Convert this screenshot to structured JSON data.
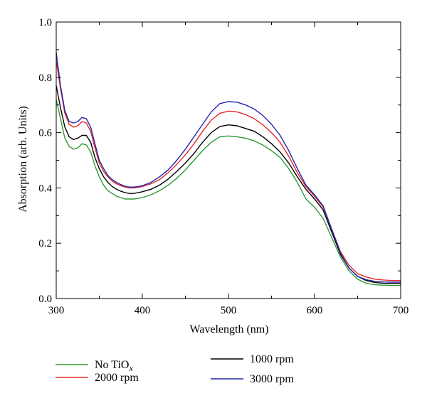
{
  "chart_data": {
    "type": "line",
    "xlabel": "Wavelength (nm)",
    "ylabel": "Absorption (arb. Units)",
    "xlim": [
      300,
      700
    ],
    "ylim": [
      0.0,
      1.0
    ],
    "xticks": [
      "300",
      "400",
      "500",
      "600",
      "700"
    ],
    "yticks": [
      "0.0",
      "0.2",
      "0.4",
      "0.6",
      "0.8",
      "1.0"
    ],
    "grid": false,
    "legend_position": "bottom",
    "series": [
      {
        "name": "No TiO",
        "name_subscript": "x",
        "color": "#2e9a35",
        "points": [
          [
            300,
            0.72
          ],
          [
            305,
            0.65
          ],
          [
            310,
            0.58
          ],
          [
            315,
            0.55
          ],
          [
            320,
            0.54
          ],
          [
            325,
            0.545
          ],
          [
            330,
            0.56
          ],
          [
            335,
            0.555
          ],
          [
            340,
            0.53
          ],
          [
            345,
            0.48
          ],
          [
            350,
            0.44
          ],
          [
            355,
            0.41
          ],
          [
            360,
            0.39
          ],
          [
            365,
            0.38
          ],
          [
            370,
            0.37
          ],
          [
            375,
            0.365
          ],
          [
            380,
            0.36
          ],
          [
            385,
            0.36
          ],
          [
            390,
            0.36
          ],
          [
            395,
            0.362
          ],
          [
            400,
            0.365
          ],
          [
            410,
            0.375
          ],
          [
            420,
            0.39
          ],
          [
            430,
            0.41
          ],
          [
            440,
            0.435
          ],
          [
            450,
            0.465
          ],
          [
            460,
            0.5
          ],
          [
            470,
            0.535
          ],
          [
            480,
            0.565
          ],
          [
            490,
            0.585
          ],
          [
            500,
            0.588
          ],
          [
            510,
            0.585
          ],
          [
            520,
            0.58
          ],
          [
            530,
            0.57
          ],
          [
            540,
            0.555
          ],
          [
            550,
            0.535
          ],
          [
            560,
            0.51
          ],
          [
            570,
            0.47
          ],
          [
            580,
            0.42
          ],
          [
            590,
            0.36
          ],
          [
            600,
            0.33
          ],
          [
            610,
            0.29
          ],
          [
            620,
            0.22
          ],
          [
            630,
            0.15
          ],
          [
            640,
            0.1
          ],
          [
            650,
            0.07
          ],
          [
            660,
            0.055
          ],
          [
            670,
            0.05
          ],
          [
            680,
            0.048
          ],
          [
            690,
            0.047
          ],
          [
            700,
            0.047
          ]
        ]
      },
      {
        "name": "1000 rpm",
        "color": "#000000",
        "points": [
          [
            300,
            0.77
          ],
          [
            305,
            0.69
          ],
          [
            310,
            0.62
          ],
          [
            315,
            0.585
          ],
          [
            320,
            0.575
          ],
          [
            325,
            0.58
          ],
          [
            330,
            0.59
          ],
          [
            335,
            0.59
          ],
          [
            340,
            0.565
          ],
          [
            345,
            0.51
          ],
          [
            350,
            0.47
          ],
          [
            355,
            0.44
          ],
          [
            360,
            0.42
          ],
          [
            365,
            0.405
          ],
          [
            370,
            0.395
          ],
          [
            375,
            0.388
          ],
          [
            380,
            0.383
          ],
          [
            385,
            0.38
          ],
          [
            390,
            0.38
          ],
          [
            395,
            0.383
          ],
          [
            400,
            0.386
          ],
          [
            410,
            0.395
          ],
          [
            420,
            0.41
          ],
          [
            430,
            0.432
          ],
          [
            440,
            0.46
          ],
          [
            450,
            0.49
          ],
          [
            460,
            0.525
          ],
          [
            470,
            0.565
          ],
          [
            480,
            0.6
          ],
          [
            490,
            0.622
          ],
          [
            500,
            0.628
          ],
          [
            510,
            0.625
          ],
          [
            520,
            0.615
          ],
          [
            530,
            0.605
          ],
          [
            540,
            0.585
          ],
          [
            550,
            0.56
          ],
          [
            560,
            0.53
          ],
          [
            570,
            0.49
          ],
          [
            580,
            0.44
          ],
          [
            590,
            0.395
          ],
          [
            600,
            0.36
          ],
          [
            610,
            0.32
          ],
          [
            620,
            0.24
          ],
          [
            630,
            0.16
          ],
          [
            640,
            0.11
          ],
          [
            650,
            0.08
          ],
          [
            660,
            0.065
          ],
          [
            670,
            0.058
          ],
          [
            680,
            0.055
          ],
          [
            690,
            0.054
          ],
          [
            700,
            0.054
          ]
        ]
      },
      {
        "name": "2000 rpm",
        "color": "#e8272a",
        "points": [
          [
            300,
            0.86
          ],
          [
            305,
            0.76
          ],
          [
            310,
            0.67
          ],
          [
            315,
            0.63
          ],
          [
            320,
            0.62
          ],
          [
            325,
            0.625
          ],
          [
            330,
            0.64
          ],
          [
            335,
            0.635
          ],
          [
            340,
            0.605
          ],
          [
            345,
            0.545
          ],
          [
            350,
            0.49
          ],
          [
            355,
            0.46
          ],
          [
            360,
            0.44
          ],
          [
            365,
            0.425
          ],
          [
            370,
            0.415
          ],
          [
            375,
            0.408
          ],
          [
            380,
            0.403
          ],
          [
            385,
            0.4
          ],
          [
            390,
            0.4
          ],
          [
            395,
            0.402
          ],
          [
            400,
            0.405
          ],
          [
            410,
            0.415
          ],
          [
            420,
            0.43
          ],
          [
            430,
            0.455
          ],
          [
            440,
            0.485
          ],
          [
            450,
            0.52
          ],
          [
            460,
            0.56
          ],
          [
            470,
            0.605
          ],
          [
            480,
            0.645
          ],
          [
            490,
            0.67
          ],
          [
            500,
            0.678
          ],
          [
            510,
            0.675
          ],
          [
            520,
            0.665
          ],
          [
            530,
            0.65
          ],
          [
            540,
            0.628
          ],
          [
            550,
            0.6
          ],
          [
            560,
            0.565
          ],
          [
            570,
            0.515
          ],
          [
            580,
            0.455
          ],
          [
            590,
            0.405
          ],
          [
            600,
            0.37
          ],
          [
            610,
            0.33
          ],
          [
            620,
            0.25
          ],
          [
            630,
            0.17
          ],
          [
            640,
            0.12
          ],
          [
            650,
            0.09
          ],
          [
            660,
            0.078
          ],
          [
            670,
            0.07
          ],
          [
            680,
            0.067
          ],
          [
            690,
            0.065
          ],
          [
            700,
            0.065
          ]
        ]
      },
      {
        "name": "3000 rpm",
        "color": "#2126a8",
        "points": [
          [
            300,
            0.89
          ],
          [
            305,
            0.77
          ],
          [
            310,
            0.68
          ],
          [
            315,
            0.64
          ],
          [
            320,
            0.635
          ],
          [
            325,
            0.64
          ],
          [
            330,
            0.655
          ],
          [
            335,
            0.65
          ],
          [
            340,
            0.62
          ],
          [
            345,
            0.56
          ],
          [
            350,
            0.5
          ],
          [
            355,
            0.47
          ],
          [
            360,
            0.445
          ],
          [
            365,
            0.43
          ],
          [
            370,
            0.42
          ],
          [
            375,
            0.412
          ],
          [
            380,
            0.406
          ],
          [
            385,
            0.403
          ],
          [
            390,
            0.403
          ],
          [
            395,
            0.405
          ],
          [
            400,
            0.408
          ],
          [
            410,
            0.42
          ],
          [
            420,
            0.44
          ],
          [
            430,
            0.465
          ],
          [
            440,
            0.5
          ],
          [
            450,
            0.54
          ],
          [
            460,
            0.585
          ],
          [
            470,
            0.63
          ],
          [
            480,
            0.675
          ],
          [
            490,
            0.705
          ],
          [
            500,
            0.712
          ],
          [
            510,
            0.71
          ],
          [
            520,
            0.7
          ],
          [
            530,
            0.685
          ],
          [
            540,
            0.662
          ],
          [
            550,
            0.63
          ],
          [
            560,
            0.59
          ],
          [
            570,
            0.535
          ],
          [
            580,
            0.47
          ],
          [
            590,
            0.41
          ],
          [
            600,
            0.375
          ],
          [
            610,
            0.335
          ],
          [
            620,
            0.25
          ],
          [
            630,
            0.165
          ],
          [
            640,
            0.11
          ],
          [
            650,
            0.08
          ],
          [
            660,
            0.068
          ],
          [
            670,
            0.062
          ],
          [
            680,
            0.06
          ],
          [
            690,
            0.059
          ],
          [
            700,
            0.059
          ]
        ]
      }
    ]
  }
}
